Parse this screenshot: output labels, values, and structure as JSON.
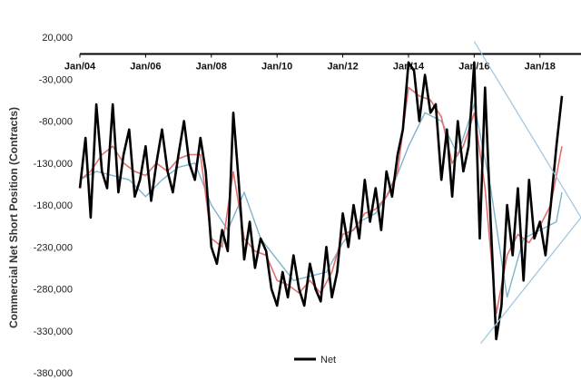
{
  "chart_data": {
    "type": "line",
    "title": "",
    "ylabel": "Commercial Net Short  Position (Contracts)",
    "xlabel": "",
    "ylim": [
      -380000,
      20000
    ],
    "yticks": [
      20000,
      -30000,
      -80000,
      -130000,
      -180000,
      -230000,
      -280000,
      -330000,
      -380000
    ],
    "ytick_labels": [
      "20,000",
      "-30,000",
      "-80,000",
      "-130,000",
      "-180,000",
      "-230,000",
      "-280,000",
      "-330,000",
      "-380,000"
    ],
    "xlim": [
      2004.0,
      2019.25
    ],
    "xticks": [
      2004,
      2006,
      2008,
      2010,
      2012,
      2014,
      2016,
      2018
    ],
    "xtick_labels": [
      "Jan/04",
      "Jan/06",
      "Jan/08",
      "Jan/10",
      "Jan/12",
      "Jan/14",
      "Jan/16",
      "Jan/18"
    ],
    "xaxis_at_y": 0,
    "grid": false,
    "legend": {
      "placement": "bottom-center",
      "entries": [
        "Net"
      ]
    },
    "colors": {
      "net": "#000000",
      "ma_short": "#e07070",
      "ma_long": "#7fb3cc",
      "trendlines": "#9cc3dd"
    },
    "series": [
      {
        "name": "Net",
        "x": [
          2004.0,
          2004.17,
          2004.33,
          2004.5,
          2004.67,
          2004.83,
          2005.0,
          2005.17,
          2005.33,
          2005.5,
          2005.67,
          2005.83,
          2006.0,
          2006.17,
          2006.33,
          2006.5,
          2006.67,
          2006.83,
          2007.0,
          2007.17,
          2007.33,
          2007.5,
          2007.67,
          2007.83,
          2008.0,
          2008.17,
          2008.33,
          2008.5,
          2008.67,
          2008.83,
          2009.0,
          2009.17,
          2009.33,
          2009.5,
          2009.67,
          2009.83,
          2010.0,
          2010.17,
          2010.33,
          2010.5,
          2010.67,
          2010.83,
          2011.0,
          2011.17,
          2011.33,
          2011.5,
          2011.67,
          2011.83,
          2012.0,
          2012.17,
          2012.33,
          2012.5,
          2012.67,
          2012.83,
          2013.0,
          2013.17,
          2013.33,
          2013.5,
          2013.67,
          2013.83,
          2014.0,
          2014.17,
          2014.33,
          2014.5,
          2014.67,
          2014.83,
          2015.0,
          2015.17,
          2015.33,
          2015.5,
          2015.67,
          2015.83,
          2016.0,
          2016.17,
          2016.33,
          2016.5,
          2016.67,
          2016.83,
          2017.0,
          2017.17,
          2017.33,
          2017.5,
          2017.67,
          2017.83,
          2018.0,
          2018.17,
          2018.33,
          2018.5,
          2018.67
        ],
        "y": [
          -160000,
          -100000,
          -195000,
          -60000,
          -140000,
          -160000,
          -60000,
          -165000,
          -120000,
          -90000,
          -170000,
          -150000,
          -110000,
          -175000,
          -130000,
          -90000,
          -140000,
          -165000,
          -120000,
          -80000,
          -130000,
          -150000,
          -100000,
          -140000,
          -230000,
          -250000,
          -210000,
          -235000,
          -70000,
          -150000,
          -245000,
          -200000,
          -255000,
          -220000,
          -235000,
          -280000,
          -300000,
          -260000,
          -290000,
          -240000,
          -280000,
          -300000,
          -250000,
          -280000,
          -295000,
          -230000,
          -290000,
          -260000,
          -190000,
          -230000,
          -180000,
          -220000,
          -150000,
          -200000,
          -160000,
          -210000,
          -140000,
          -170000,
          -120000,
          -90000,
          -10000,
          -20000,
          -80000,
          -25000,
          -70000,
          -60000,
          -150000,
          -90000,
          -170000,
          -80000,
          -140000,
          -110000,
          -10000,
          -220000,
          -40000,
          -200000,
          -340000,
          -300000,
          -180000,
          -240000,
          -160000,
          -270000,
          -150000,
          -220000,
          -200000,
          -240000,
          -180000,
          -110000,
          -50000
        ]
      },
      {
        "name": "",
        "x": [
          2004.0,
          2004.33,
          2004.67,
          2005.0,
          2005.33,
          2005.67,
          2006.0,
          2006.33,
          2006.67,
          2007.0,
          2007.33,
          2007.67,
          2008.0,
          2008.33,
          2008.67,
          2009.0,
          2009.33,
          2009.67,
          2010.0,
          2010.33,
          2010.67,
          2011.0,
          2011.33,
          2011.67,
          2012.0,
          2012.33,
          2012.67,
          2013.0,
          2013.33,
          2013.67,
          2014.0,
          2014.33,
          2014.67,
          2015.0,
          2015.33,
          2015.67,
          2016.0,
          2016.33,
          2016.67,
          2017.0,
          2017.33,
          2017.67,
          2018.0,
          2018.33,
          2018.67
        ],
        "y": [
          -150000,
          -140000,
          -120000,
          -110000,
          -130000,
          -140000,
          -145000,
          -130000,
          -140000,
          -125000,
          -120000,
          -120000,
          -220000,
          -230000,
          -140000,
          -220000,
          -235000,
          -240000,
          -270000,
          -275000,
          -285000,
          -270000,
          -285000,
          -260000,
          -215000,
          -210000,
          -190000,
          -185000,
          -170000,
          -140000,
          -40000,
          -50000,
          -55000,
          -75000,
          -130000,
          -110000,
          -70000,
          -160000,
          -310000,
          -240000,
          -215000,
          -225000,
          -205000,
          -180000,
          -110000
        ]
      },
      {
        "name": "",
        "x": [
          2004.0,
          2004.5,
          2005.0,
          2005.5,
          2006.0,
          2006.5,
          2007.0,
          2007.5,
          2008.0,
          2008.5,
          2009.0,
          2009.5,
          2010.0,
          2010.5,
          2011.0,
          2011.5,
          2012.0,
          2012.5,
          2013.0,
          2013.5,
          2014.0,
          2014.5,
          2015.0,
          2015.5,
          2016.0,
          2016.5,
          2017.0,
          2017.5,
          2018.0,
          2018.5,
          2018.67
        ],
        "y": [
          -150000,
          -140000,
          -145000,
          -150000,
          -170000,
          -150000,
          -135000,
          -130000,
          -180000,
          -210000,
          -165000,
          -220000,
          -245000,
          -270000,
          -265000,
          -260000,
          -225000,
          -200000,
          -190000,
          -160000,
          -110000,
          -70000,
          -80000,
          -120000,
          -60000,
          -160000,
          -290000,
          -220000,
          -210000,
          -200000,
          -165000
        ]
      }
    ],
    "trendlines": [
      {
        "from": {
          "x": 2016.0,
          "y": 15000
        },
        "to": {
          "x": 2019.25,
          "y": -195000
        }
      },
      {
        "from": {
          "x": 2016.2,
          "y": -345000
        },
        "to": {
          "x": 2019.25,
          "y": -195000
        }
      }
    ]
  }
}
